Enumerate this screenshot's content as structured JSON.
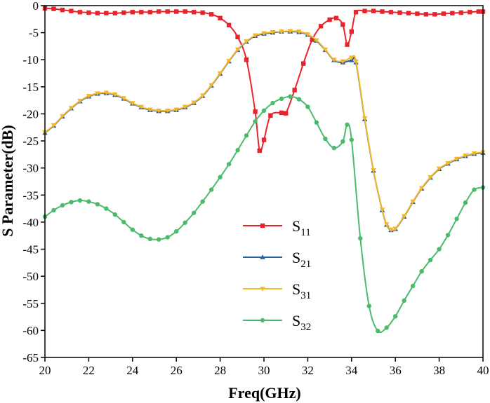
{
  "chart_data": {
    "type": "line",
    "xlabel": "Freq(GHz)",
    "ylabel": "S Parameter(dB)",
    "xlim": [
      20,
      40
    ],
    "ylim": [
      -65,
      0
    ],
    "xticks": [
      20,
      22,
      24,
      26,
      28,
      30,
      32,
      34,
      36,
      38,
      40
    ],
    "yticks": [
      0,
      -5,
      -10,
      -15,
      -20,
      -25,
      -30,
      -35,
      -40,
      -45,
      -50,
      -55,
      -60,
      -65
    ],
    "legend_position": "center-right",
    "series": [
      {
        "name": "S11",
        "legend_main": "S",
        "legend_sub": "11",
        "color": "#e8232b",
        "marker": "square",
        "points": [
          [
            20,
            -0.5
          ],
          [
            20.4,
            -0.6
          ],
          [
            20.8,
            -0.8
          ],
          [
            21.2,
            -1.0
          ],
          [
            21.6,
            -1.2
          ],
          [
            22,
            -1.3
          ],
          [
            22.4,
            -1.4
          ],
          [
            22.8,
            -1.4
          ],
          [
            23.2,
            -1.4
          ],
          [
            23.6,
            -1.3
          ],
          [
            24,
            -1.2
          ],
          [
            24.4,
            -1.2
          ],
          [
            24.8,
            -1.2
          ],
          [
            25.2,
            -1.1
          ],
          [
            25.6,
            -1.1
          ],
          [
            26,
            -1.1
          ],
          [
            26.4,
            -1.1
          ],
          [
            26.8,
            -1.2
          ],
          [
            27.2,
            -1.3
          ],
          [
            27.6,
            -1.6
          ],
          [
            28,
            -2.3
          ],
          [
            28.4,
            -3.6
          ],
          [
            28.8,
            -5.8
          ],
          [
            29.2,
            -10
          ],
          [
            29.6,
            -19.6
          ],
          [
            29.8,
            -26.8
          ],
          [
            30,
            -24.8
          ],
          [
            30.3,
            -20.3
          ],
          [
            30.8,
            -19.8
          ],
          [
            31,
            -19.9
          ],
          [
            31.4,
            -15.6
          ],
          [
            31.8,
            -10.7
          ],
          [
            32.2,
            -6.3
          ],
          [
            32.6,
            -3.8
          ],
          [
            33,
            -2.6
          ],
          [
            33.3,
            -2.3
          ],
          [
            33.6,
            -3.5
          ],
          [
            33.8,
            -7.2
          ],
          [
            34,
            -4.8
          ],
          [
            34.2,
            -1.2
          ],
          [
            34.6,
            -1.0
          ],
          [
            35,
            -1.0
          ],
          [
            35.4,
            -1.1
          ],
          [
            35.8,
            -1.2
          ],
          [
            36.2,
            -1.3
          ],
          [
            36.6,
            -1.4
          ],
          [
            37,
            -1.5
          ],
          [
            37.4,
            -1.6
          ],
          [
            37.8,
            -1.6
          ],
          [
            38.2,
            -1.5
          ],
          [
            38.6,
            -1.4
          ],
          [
            39,
            -1.3
          ],
          [
            39.4,
            -1.2
          ],
          [
            39.8,
            -1.1
          ],
          [
            40,
            -1.1
          ]
        ]
      },
      {
        "name": "S21",
        "legend_main": "S",
        "legend_sub": "21",
        "color": "#2a5ea8",
        "marker": "triangle-up",
        "points": [
          [
            20,
            -23.5
          ],
          [
            20.4,
            -22.2
          ],
          [
            20.8,
            -20.5
          ],
          [
            21.2,
            -19
          ],
          [
            21.6,
            -17.7
          ],
          [
            22,
            -16.8
          ],
          [
            22.4,
            -16.3
          ],
          [
            22.8,
            -16.2
          ],
          [
            23.2,
            -16.5
          ],
          [
            23.6,
            -17.2
          ],
          [
            24,
            -18.1
          ],
          [
            24.4,
            -18.8
          ],
          [
            24.8,
            -19.3
          ],
          [
            25.2,
            -19.5
          ],
          [
            25.6,
            -19.5
          ],
          [
            26,
            -19.3
          ],
          [
            26.4,
            -18.8
          ],
          [
            26.8,
            -18
          ],
          [
            27.2,
            -16.7
          ],
          [
            27.6,
            -14.8
          ],
          [
            28,
            -12.6
          ],
          [
            28.4,
            -10.3
          ],
          [
            28.8,
            -8.2
          ],
          [
            29.2,
            -6.7
          ],
          [
            29.6,
            -5.6
          ],
          [
            30,
            -5.2
          ],
          [
            30.4,
            -5.0
          ],
          [
            30.8,
            -4.8
          ],
          [
            31.2,
            -4.8
          ],
          [
            31.6,
            -4.9
          ],
          [
            32,
            -5.4
          ],
          [
            32.4,
            -6.5
          ],
          [
            32.8,
            -8.2
          ],
          [
            33.2,
            -10.1
          ],
          [
            33.6,
            -10.5
          ],
          [
            34,
            -10.1
          ],
          [
            34.2,
            -10.5
          ],
          [
            34.6,
            -21
          ],
          [
            35,
            -30.5
          ],
          [
            35.4,
            -37.8
          ],
          [
            35.6,
            -40.5
          ],
          [
            35.8,
            -41.5
          ],
          [
            36,
            -41.3
          ],
          [
            36.4,
            -39
          ],
          [
            36.8,
            -36.3
          ],
          [
            37.2,
            -33.8
          ],
          [
            37.6,
            -31.8
          ],
          [
            38,
            -30.2
          ],
          [
            38.4,
            -29.2
          ],
          [
            38.8,
            -28.4
          ],
          [
            39.2,
            -27.8
          ],
          [
            39.6,
            -27.4
          ],
          [
            40,
            -27.2
          ]
        ]
      },
      {
        "name": "S31",
        "legend_main": "S",
        "legend_sub": "31",
        "color": "#f2b828",
        "marker": "triangle-down",
        "points": [
          [
            20,
            -23.4
          ],
          [
            20.4,
            -22.1
          ],
          [
            20.8,
            -20.4
          ],
          [
            21.2,
            -18.9
          ],
          [
            21.6,
            -17.6
          ],
          [
            22,
            -16.7
          ],
          [
            22.4,
            -16.2
          ],
          [
            22.8,
            -16.1
          ],
          [
            23.2,
            -16.4
          ],
          [
            23.6,
            -17.1
          ],
          [
            24,
            -18
          ],
          [
            24.4,
            -18.7
          ],
          [
            24.8,
            -19.2
          ],
          [
            25.2,
            -19.4
          ],
          [
            25.6,
            -19.4
          ],
          [
            26,
            -19.2
          ],
          [
            26.4,
            -18.7
          ],
          [
            26.8,
            -17.9
          ],
          [
            27.2,
            -16.6
          ],
          [
            27.6,
            -14.7
          ],
          [
            28,
            -12.5
          ],
          [
            28.4,
            -10.2
          ],
          [
            28.8,
            -8.1
          ],
          [
            29.2,
            -6.6
          ],
          [
            29.6,
            -5.5
          ],
          [
            30,
            -5.1
          ],
          [
            30.4,
            -4.9
          ],
          [
            30.8,
            -4.8
          ],
          [
            31.2,
            -4.7
          ],
          [
            31.6,
            -4.8
          ],
          [
            32,
            -5.3
          ],
          [
            32.4,
            -6.4
          ],
          [
            32.8,
            -8.1
          ],
          [
            33.2,
            -10.0
          ],
          [
            33.6,
            -10.3
          ],
          [
            34,
            -9.6
          ],
          [
            34.2,
            -10.3
          ],
          [
            34.6,
            -20.8
          ],
          [
            35,
            -30.4
          ],
          [
            35.4,
            -37.7
          ],
          [
            35.6,
            -40.4
          ],
          [
            35.8,
            -41.4
          ],
          [
            36,
            -41.2
          ],
          [
            36.4,
            -38.9
          ],
          [
            36.8,
            -36.2
          ],
          [
            37.2,
            -33.7
          ],
          [
            37.6,
            -31.7
          ],
          [
            38,
            -30.1
          ],
          [
            38.4,
            -29.1
          ],
          [
            38.8,
            -28.3
          ],
          [
            39.2,
            -27.7
          ],
          [
            39.6,
            -27.3
          ],
          [
            40,
            -27.1
          ]
        ]
      },
      {
        "name": "S32",
        "legend_main": "S",
        "legend_sub": "32",
        "color": "#4cba6c",
        "marker": "circle",
        "points": [
          [
            20,
            -39
          ],
          [
            20.4,
            -37.8
          ],
          [
            20.8,
            -36.9
          ],
          [
            21.2,
            -36.3
          ],
          [
            21.6,
            -36.0
          ],
          [
            22,
            -36.2
          ],
          [
            22.4,
            -36.7
          ],
          [
            22.8,
            -37.5
          ],
          [
            23.2,
            -38.6
          ],
          [
            23.6,
            -40
          ],
          [
            24,
            -41.4
          ],
          [
            24.4,
            -42.5
          ],
          [
            24.8,
            -43.1
          ],
          [
            25.2,
            -43.2
          ],
          [
            25.6,
            -42.8
          ],
          [
            26,
            -41.7
          ],
          [
            26.4,
            -40.1
          ],
          [
            26.8,
            -38.3
          ],
          [
            27.2,
            -36.2
          ],
          [
            27.6,
            -34
          ],
          [
            28,
            -31.7
          ],
          [
            28.4,
            -29.3
          ],
          [
            28.8,
            -26.7
          ],
          [
            29.2,
            -24
          ],
          [
            29.6,
            -21.4
          ],
          [
            30,
            -19.4
          ],
          [
            30.4,
            -18
          ],
          [
            30.8,
            -17.2
          ],
          [
            31.2,
            -16.8
          ],
          [
            31.6,
            -17.3
          ],
          [
            32,
            -18.7
          ],
          [
            32.4,
            -21.6
          ],
          [
            32.8,
            -24.6
          ],
          [
            33.2,
            -26.3
          ],
          [
            33.6,
            -25.1
          ],
          [
            33.8,
            -22
          ],
          [
            34,
            -24.8
          ],
          [
            34.4,
            -43
          ],
          [
            34.8,
            -55.5
          ],
          [
            35.2,
            -60.1
          ],
          [
            35.6,
            -59.5
          ],
          [
            36,
            -57.4
          ],
          [
            36.4,
            -54.5
          ],
          [
            36.8,
            -51.8
          ],
          [
            37.2,
            -49.1
          ],
          [
            37.6,
            -47
          ],
          [
            38,
            -45
          ],
          [
            38.4,
            -42.4
          ],
          [
            38.8,
            -39.4
          ],
          [
            39.2,
            -36.4
          ],
          [
            39.6,
            -34
          ],
          [
            40,
            -33.6
          ]
        ]
      }
    ]
  }
}
